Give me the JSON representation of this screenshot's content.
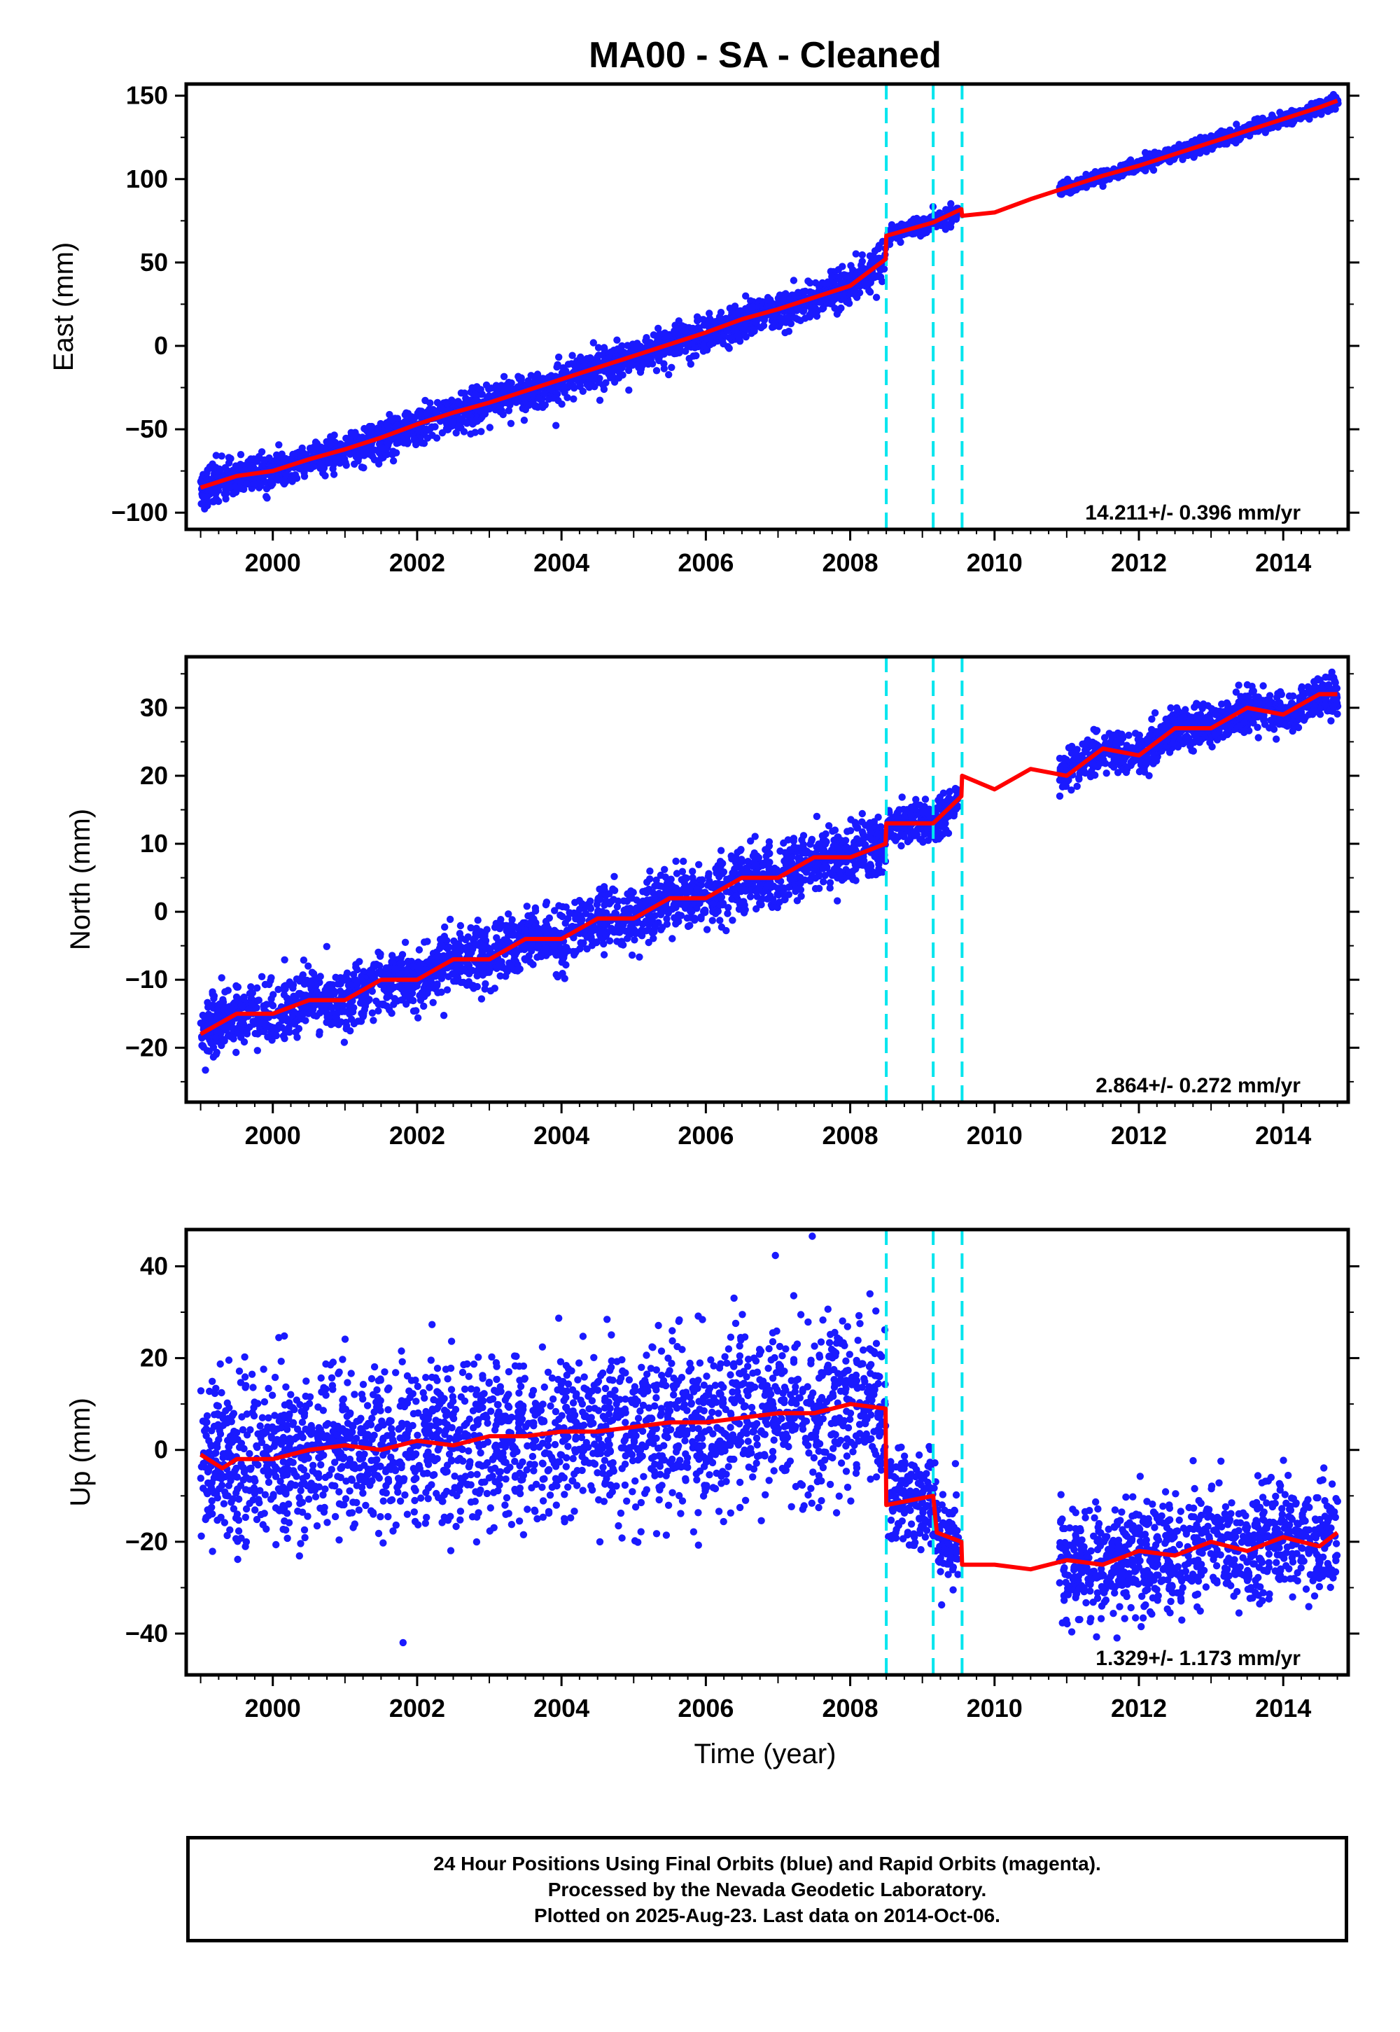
{
  "title": "MA00  - SA - Cleaned",
  "xlabel": "Time (year)",
  "colors": {
    "points": "#1a1aff",
    "model": "#ff0000",
    "steps": "#00e5ee",
    "frame": "#000000"
  },
  "footer": {
    "line1": "24 Hour Positions Using Final Orbits (blue) and Rapid Orbits (magenta).",
    "line2": "Processed by the Nevada Geodetic Laboratory.",
    "line3": "Plotted on 2025-Aug-23. Last data on 2014-Oct-06."
  },
  "chart_data": [
    {
      "type": "scatter",
      "ylabel": "East (mm)",
      "xlim": [
        1998.8,
        2014.9
      ],
      "ylim": [
        -110,
        157
      ],
      "xticks": [
        2000,
        2002,
        2004,
        2006,
        2008,
        2010,
        2012,
        2014
      ],
      "yticks": [
        -100,
        -50,
        0,
        50,
        100,
        150
      ],
      "rate_label": "14.211+/- 0.396 mm/yr",
      "steps": [
        2008.5,
        2009.15,
        2009.55
      ],
      "series": [
        {
          "kind": "model",
          "x": [
            1999.0,
            1999.5,
            2000.0,
            2000.5,
            2001.0,
            2001.5,
            2002.0,
            2002.5,
            2003.0,
            2003.5,
            2004.0,
            2004.5,
            2005.0,
            2005.5,
            2006.0,
            2006.5,
            2007.0,
            2007.5,
            2008.0,
            2008.49,
            2008.5,
            2009.15,
            2009.54,
            2009.55,
            2010.0,
            2010.5,
            2011.0,
            2011.5,
            2012.0,
            2012.5,
            2013.0,
            2013.5,
            2014.0,
            2014.5,
            2014.75
          ],
          "y": [
            -85,
            -78,
            -75,
            -68,
            -62,
            -55,
            -47,
            -40,
            -34,
            -27,
            -20,
            -13,
            -6,
            1,
            8,
            16,
            22,
            29,
            36,
            52,
            66,
            74,
            82,
            78,
            80,
            88,
            95,
            102,
            108,
            115,
            122,
            129,
            136,
            143,
            147
          ]
        },
        {
          "kind": "observations",
          "segments": [
            {
              "x0": 1999.0,
              "x1": 2008.49,
              "sigma": 5,
              "sigma_low_tail": 6
            },
            {
              "x0": 2008.52,
              "x1": 2009.5,
              "sigma": 2.5
            },
            {
              "x0": 2010.9,
              "x1": 2014.76,
              "sigma": 2
            }
          ],
          "count": 3400
        }
      ]
    },
    {
      "type": "scatter",
      "ylabel": "North (mm)",
      "xlim": [
        1998.8,
        2014.9
      ],
      "ylim": [
        -28,
        37.5
      ],
      "xticks": [
        2000,
        2002,
        2004,
        2006,
        2008,
        2010,
        2012,
        2014
      ],
      "yticks": [
        -20,
        -10,
        0,
        10,
        20,
        30
      ],
      "rate_label": "2.864+/- 0.272 mm/yr",
      "steps": [
        2008.5,
        2009.15,
        2009.55
      ],
      "series": [
        {
          "kind": "model",
          "x": [
            1999.0,
            1999.5,
            2000.0,
            2000.5,
            2001.0,
            2001.5,
            2002.0,
            2002.5,
            2003.0,
            2003.5,
            2004.0,
            2004.5,
            2005.0,
            2005.5,
            2006.0,
            2006.5,
            2007.0,
            2007.5,
            2008.0,
            2008.49,
            2008.5,
            2009.15,
            2009.54,
            2009.55,
            2010.0,
            2010.5,
            2011.0,
            2011.5,
            2012.0,
            2012.5,
            2013.0,
            2013.5,
            2014.0,
            2014.5,
            2014.75
          ],
          "y": [
            -18,
            -15,
            -15,
            -13,
            -13,
            -10,
            -10,
            -7,
            -7,
            -4,
            -4,
            -1,
            -1,
            2,
            2,
            5,
            5,
            8,
            8,
            10,
            13,
            13,
            17,
            20,
            18,
            21,
            20,
            24,
            23,
            27,
            27,
            30,
            29,
            32,
            32
          ]
        },
        {
          "kind": "observations",
          "segments": [
            {
              "x0": 1999.0,
              "x1": 2008.49,
              "sigma": 2.2
            },
            {
              "x0": 2008.52,
              "x1": 2009.5,
              "sigma": 1.5
            },
            {
              "x0": 2010.9,
              "x1": 2014.76,
              "sigma": 1.4
            }
          ],
          "count": 3400
        }
      ]
    },
    {
      "type": "scatter",
      "ylabel": "Up (mm)",
      "xlim": [
        1998.8,
        2014.9
      ],
      "ylim": [
        -49,
        48
      ],
      "xticks": [
        2000,
        2002,
        2004,
        2006,
        2008,
        2010,
        2012,
        2014
      ],
      "yticks": [
        -40,
        -20,
        0,
        20,
        40
      ],
      "rate_label": "1.329+/- 1.173 mm/yr",
      "steps": [
        2008.5,
        2009.15,
        2009.55
      ],
      "series": [
        {
          "kind": "model",
          "x": [
            1999.0,
            1999.3,
            1999.5,
            2000.0,
            2000.5,
            2001.0,
            2001.5,
            2002.0,
            2002.5,
            2003.0,
            2003.5,
            2004.0,
            2004.5,
            2005.0,
            2005.5,
            2006.0,
            2006.5,
            2007.0,
            2007.5,
            2008.0,
            2008.49,
            2008.5,
            2009.15,
            2009.2,
            2009.54,
            2009.55,
            2010.0,
            2010.5,
            2011.0,
            2011.5,
            2012.0,
            2012.5,
            2013.0,
            2013.5,
            2014.0,
            2014.5,
            2014.75
          ],
          "y": [
            -1,
            -4,
            -2,
            -2,
            0,
            1,
            0,
            2,
            1,
            3,
            3,
            4,
            4,
            5,
            6,
            6,
            7,
            8,
            8,
            10,
            9,
            -12,
            -10,
            -18,
            -20,
            -25,
            -25,
            -26,
            -24,
            -25,
            -22,
            -23,
            -20,
            -22,
            -19,
            -21,
            -18
          ]
        },
        {
          "kind": "observations",
          "segments": [
            {
              "x0": 1999.0,
              "x1": 2008.49,
              "sigma": 9
            },
            {
              "x0": 2008.52,
              "x1": 2009.5,
              "sigma": 5
            },
            {
              "x0": 2010.9,
              "x1": 2014.76,
              "sigma": 6
            }
          ],
          "count": 3400
        }
      ]
    }
  ]
}
